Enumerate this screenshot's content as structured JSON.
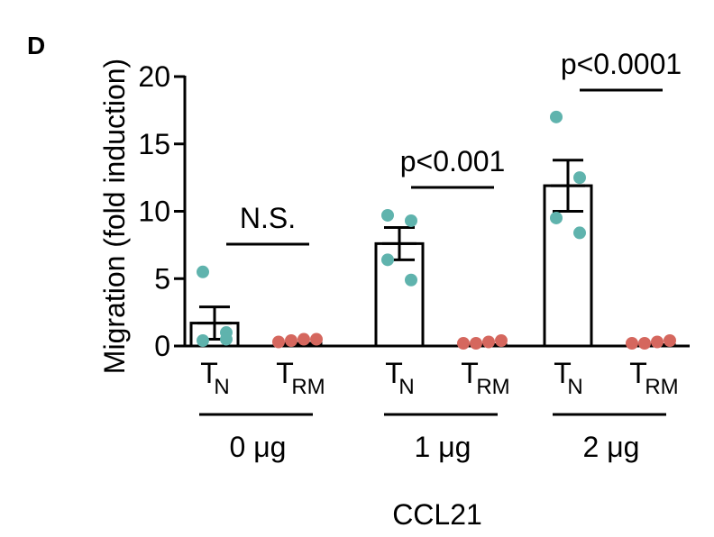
{
  "panel_label": "D",
  "chart_data": {
    "type": "bar",
    "ylabel": "Migration (fold induction)",
    "xlabel": "CCL21",
    "ylim": [
      0,
      20
    ],
    "yticks": [
      0,
      5,
      10,
      15,
      20
    ],
    "groups": [
      {
        "label": "0 μg",
        "comparison": "N.S.",
        "bars": [
          {
            "label": "T",
            "subscript": "N",
            "mean": 1.7,
            "sem": 1.2,
            "points": [
              5.5,
              1.0,
              0.2,
              0.3
            ],
            "color": "#5fb3ad"
          },
          {
            "label": "T",
            "subscript": "RM",
            "mean": 0.2,
            "sem": 0.1,
            "points": [
              0.1,
              0.2,
              0.3,
              0.5
            ],
            "color": "#d5675e"
          }
        ]
      },
      {
        "label": "1 μg",
        "comparison": "p<0.001",
        "bars": [
          {
            "label": "T",
            "subscript": "N",
            "mean": 7.6,
            "sem": 1.2,
            "points": [
              9.7,
              9.3,
              6.4,
              4.9
            ],
            "color": "#5fb3ad"
          },
          {
            "label": "T",
            "subscript": "RM",
            "mean": 0.1,
            "sem": 0.0,
            "points": [
              0.0,
              0.0,
              0.1,
              0.2
            ],
            "color": "#d5675e"
          }
        ]
      },
      {
        "label": "2 μg",
        "comparison": "p<0.0001",
        "bars": [
          {
            "label": "T",
            "subscript": "N",
            "mean": 11.9,
            "sem": 1.9,
            "points": [
              17.0,
              12.5,
              9.5,
              8.4
            ],
            "color": "#5fb3ad"
          },
          {
            "label": "T",
            "subscript": "RM",
            "mean": 0.1,
            "sem": 0.0,
            "points": [
              0.0,
              0.0,
              0.1,
              0.2
            ],
            "color": "#d5675e"
          }
        ]
      }
    ]
  }
}
